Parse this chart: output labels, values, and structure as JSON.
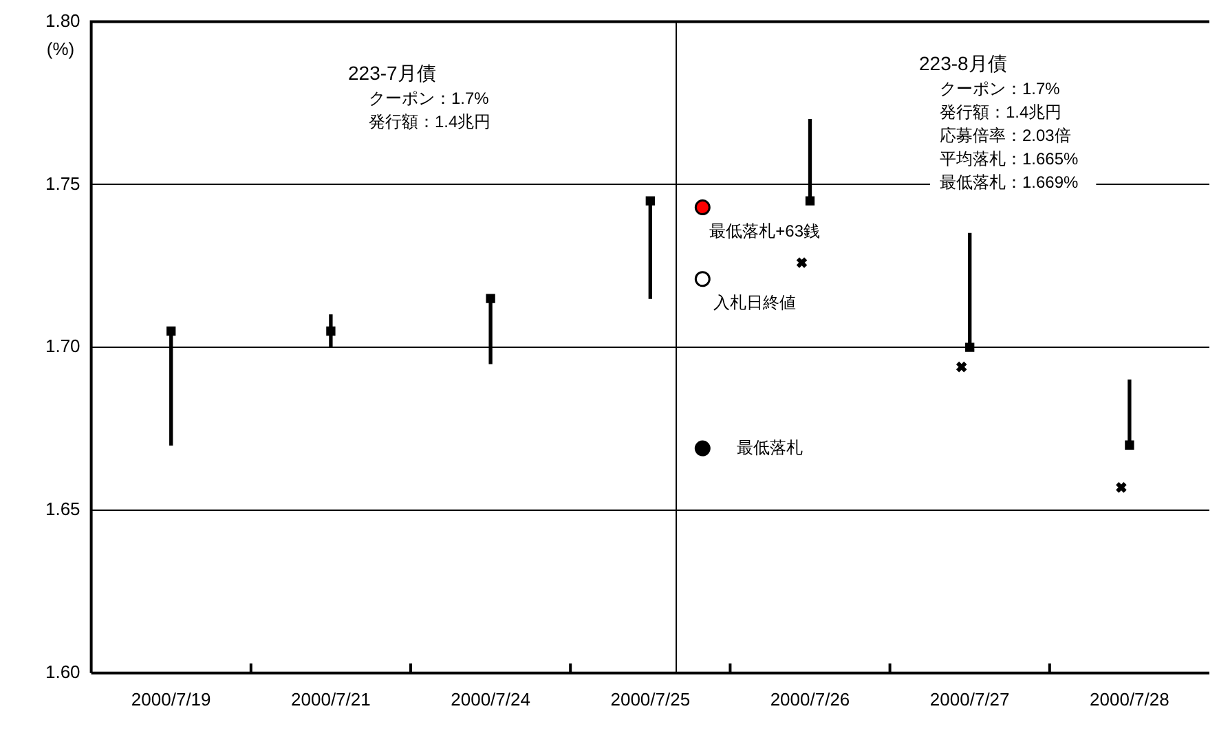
{
  "chart_data": {
    "type": "bar",
    "ylabel": "(%)",
    "categories": [
      "2000/7/19",
      "2000/7/21",
      "2000/7/24",
      "2000/7/25",
      "2000/7/26",
      "2000/7/27",
      "2000/7/28"
    ],
    "series": [
      {
        "color": "#000000",
        "base": [
          1.67,
          1.7,
          1.695,
          1.715,
          1.745,
          1.7,
          1.67
        ],
        "values": [
          0.035,
          0.01,
          0.02,
          0.03,
          0.025,
          0.035,
          0.02
        ]
      },
      {
        "type": "scatter",
        "marker": "square",
        "color": "#000000",
        "values": [
          1.705,
          1.705,
          1.715,
          1.745,
          1.745,
          1.7,
          1.67
        ]
      },
      {
        "type": "scatter",
        "marker": "cross",
        "color": "#000000",
        "values": [
          null,
          null,
          null,
          null,
          1.726,
          1.694,
          1.657
        ]
      },
      {
        "type": "scatter",
        "marker": "circle",
        "name": "最低落札+63銭",
        "color": "#ff0000",
        "x": [
          "2000/7/25"
        ],
        "values": [
          1.743
        ]
      },
      {
        "type": "scatter",
        "marker": "circle",
        "name": "入札日終値",
        "color": "#ffffff",
        "x": [
          "2000/7/25"
        ],
        "values": [
          1.721
        ]
      },
      {
        "type": "scatter",
        "marker": "circle",
        "name": "最低落札",
        "color": "#000000",
        "x": [
          "2000/7/25"
        ],
        "values": [
          1.669
        ]
      }
    ],
    "ylim": [
      1.6,
      1.8
    ],
    "yticks": [
      {
        "value": 1.6,
        "label": "1.60"
      },
      {
        "value": 1.65,
        "label": "1.65"
      },
      {
        "value": 1.7,
        "label": "1.70"
      },
      {
        "value": 1.75,
        "label": "1.75"
      },
      {
        "value": 1.8,
        "label": "1.80"
      }
    ],
    "ref_lines": [
      {
        "axis": "x",
        "value": "2000/7/25",
        "color": "#000000"
      }
    ],
    "annotations": [
      "223-7月債",
      "クーポン：1.7%",
      "発行額：1.4兆円",
      "223-8月債",
      "クーポン：1.7%",
      "発行額：1.4兆円",
      "応募倍率：2.03倍",
      "平均落札：1.665%",
      "最低落札：1.669%"
    ],
    "grid": "y"
  }
}
